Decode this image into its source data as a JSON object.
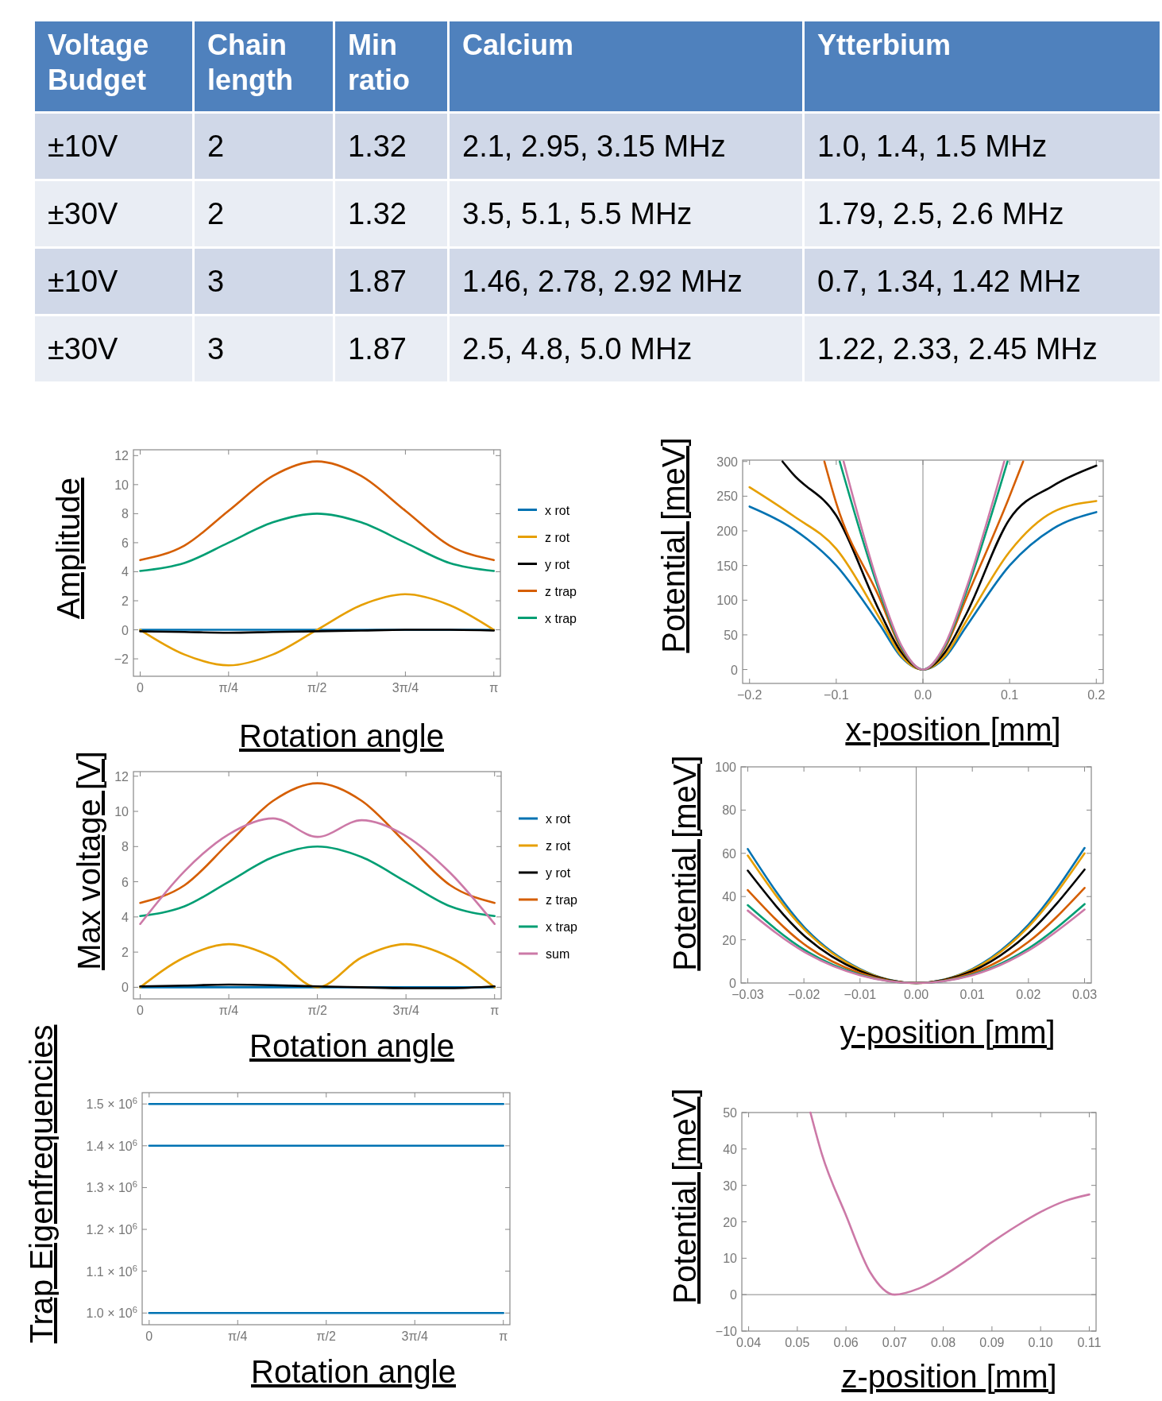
{
  "chart_data": [
    {
      "type": "other",
      "categories": [
        "Voltage Budget",
        "Chain length",
        "Min ratio",
        "Calcium",
        "Ytterbium"
      ],
      "cell_labels": [
        [
          "±10V",
          "2",
          "1.32",
          "2.1, 2.95, 3.15 MHz",
          "1.0, 1.4, 1.5 MHz"
        ],
        [
          "±30V",
          "2",
          "1.32",
          "3.5, 5.1, 5.5 MHz",
          "1.79, 2.5, 2.6 MHz"
        ],
        [
          "±10V",
          "3",
          "1.87",
          "1.46, 2.78, 2.92 MHz",
          "0.7, 1.34, 1.42 MHz"
        ],
        [
          "±30V",
          "3",
          "1.87",
          "2.5, 4.8, 5.0 MHz",
          "1.22, 2.33, 2.45 MHz"
        ]
      ]
    },
    {
      "type": "line",
      "xlabel": "Rotation angle",
      "ylabel": "Amplitude",
      "legend": "right",
      "xlim": [
        -0.06,
        3.2
      ],
      "ylim": [
        -3.2,
        12.4
      ],
      "xticks": [
        0,
        {
          "value": 0.7854,
          "label": "π/4"
        },
        {
          "value": 1.5708,
          "label": "π/2"
        },
        {
          "value": 2.3562,
          "label": "3π/4"
        },
        {
          "value": 3.1416,
          "label": "π"
        }
      ],
      "yticks": [
        {
          "value": -2,
          "label": "−2"
        },
        0,
        2,
        4,
        6,
        8,
        10,
        12
      ],
      "x": [
        0,
        0.3927,
        0.7854,
        1.1781,
        1.5708,
        1.9635,
        2.3562,
        2.7489,
        3.1416
      ],
      "series": [
        {
          "name": "x rot",
          "color": "#0072b2",
          "values": [
            0,
            0,
            0,
            0,
            0,
            0,
            0,
            0,
            0
          ]
        },
        {
          "name": "z rot",
          "color": "#e69f00",
          "values": [
            0,
            -1.7,
            -2.45,
            -1.7,
            0,
            1.7,
            2.45,
            1.7,
            0
          ]
        },
        {
          "name": "y rot",
          "color": "#000000",
          "values": [
            -0.1,
            -0.15,
            -0.2,
            -0.15,
            -0.1,
            -0.05,
            0,
            0,
            -0.05
          ]
        },
        {
          "name": "z trap",
          "color": "#d55e00",
          "values": [
            4.8,
            5.8,
            8.2,
            10.6,
            11.6,
            10.6,
            8.2,
            5.8,
            4.8
          ]
        },
        {
          "name": "x trap",
          "color": "#009e73",
          "values": [
            4.05,
            4.6,
            6.0,
            7.4,
            8.0,
            7.4,
            6.0,
            4.6,
            4.05
          ]
        }
      ]
    },
    {
      "type": "line",
      "xlabel": "x-position [mm]",
      "ylabel": "Potential [meV]",
      "xlim": [
        -0.208,
        0.208
      ],
      "ylim": [
        -20,
        302
      ],
      "xticks": [
        {
          "value": -0.2,
          "label": "−0.2"
        },
        {
          "value": -0.1,
          "label": "−0.1"
        },
        {
          "value": 0,
          "label": "0.0"
        },
        0.1,
        0.2
      ],
      "yticks": [
        0,
        50,
        100,
        150,
        200,
        250,
        300
      ],
      "ref_lines": [
        {
          "axis": "x",
          "value": 0
        }
      ],
      "series": [
        {
          "color": "#0072b2",
          "x": [
            -0.2,
            -0.15,
            -0.1,
            -0.05,
            -0.025,
            0,
            0.025,
            0.05,
            0.1,
            0.15,
            0.2
          ],
          "values": [
            235,
            203,
            150,
            65,
            18,
            0,
            17,
            62,
            150,
            203,
            227
          ]
        },
        {
          "color": "#e69f00",
          "x": [
            -0.2,
            -0.15,
            -0.1,
            -0.05,
            -0.025,
            0,
            0.025,
            0.05,
            0.1,
            0.15,
            0.2
          ],
          "values": [
            263,
            222,
            174,
            74,
            20,
            0,
            19,
            70,
            170,
            227,
            243
          ]
        },
        {
          "color": "#000000",
          "x": [
            -0.162,
            -0.15,
            -0.1,
            -0.05,
            -0.025,
            0,
            0.025,
            0.05,
            0.1,
            0.15,
            0.2
          ],
          "values": [
            300,
            282,
            222,
            84,
            25,
            0,
            24,
            80,
            217,
            265,
            294
          ]
        },
        {
          "color": "#d55e00",
          "x": [
            -0.1137,
            -0.1,
            -0.05,
            -0.025,
            0,
            0.025,
            0.05,
            0.1,
            0.1156
          ],
          "values": [
            300,
            240,
            103,
            30,
            0,
            30,
            103,
            250,
            300
          ]
        },
        {
          "color": "#009e73",
          "x": [
            -0.096,
            -0.05,
            -0.025,
            0,
            0.025,
            0.05,
            0.0976
          ],
          "values": [
            300,
            112,
            33,
            0,
            33,
            112,
            300
          ]
        },
        {
          "color": "#cc79a7",
          "x": [
            -0.0915,
            -0.05,
            -0.025,
            0,
            0.025,
            0.05,
            0.0938
          ],
          "values": [
            300,
            117,
            35,
            0,
            35,
            117,
            300
          ]
        }
      ]
    },
    {
      "type": "line",
      "xlabel": "Rotation angle",
      "ylabel": "Max voltage [V]",
      "legend": "right",
      "xlim": [
        -0.06,
        3.2
      ],
      "ylim": [
        -0.66,
        12.26
      ],
      "xticks": [
        0,
        {
          "value": 0.7854,
          "label": "π/4"
        },
        {
          "value": 1.5708,
          "label": "π/2"
        },
        {
          "value": 2.3562,
          "label": "3π/4"
        },
        {
          "value": 3.1416,
          "label": "π"
        }
      ],
      "yticks": [
        0,
        2,
        4,
        6,
        8,
        10,
        12
      ],
      "x": [
        0,
        0.3927,
        0.7854,
        1.1781,
        1.5708,
        1.9635,
        2.3562,
        2.7489,
        3.1416
      ],
      "series": [
        {
          "name": "x rot",
          "color": "#0072b2",
          "values": [
            0,
            0,
            0,
            0,
            0,
            0,
            0,
            0,
            0
          ]
        },
        {
          "name": "z rot",
          "color": "#e69f00",
          "values": [
            0,
            1.7,
            2.45,
            1.7,
            0,
            1.7,
            2.45,
            1.7,
            0
          ]
        },
        {
          "name": "y rot",
          "color": "#000000",
          "values": [
            0.05,
            0.1,
            0.15,
            0.12,
            0.05,
            0,
            -0.05,
            -0.05,
            0.05
          ]
        },
        {
          "name": "z trap",
          "color": "#d55e00",
          "values": [
            4.8,
            5.8,
            8.2,
            10.6,
            11.6,
            10.6,
            8.2,
            5.8,
            4.8
          ]
        },
        {
          "name": "x trap",
          "color": "#009e73",
          "values": [
            4.05,
            4.6,
            6.0,
            7.4,
            8.0,
            7.4,
            6.0,
            4.6,
            4.05
          ]
        },
        {
          "name": "sum",
          "color": "#cc79a7",
          "values": [
            3.6,
            6.6,
            8.7,
            9.6,
            8.55,
            9.5,
            8.6,
            6.5,
            3.6
          ]
        }
      ]
    },
    {
      "type": "line",
      "xlabel": "y-position [mm]",
      "ylabel": "Potential [meV]",
      "xlim": [
        -0.0312,
        0.0312
      ],
      "ylim": [
        0,
        100
      ],
      "xticks": [
        {
          "value": -0.03,
          "label": "−0.03"
        },
        {
          "value": -0.02,
          "label": "−0.02"
        },
        {
          "value": -0.01,
          "label": "−0.01"
        },
        {
          "value": 0,
          "label": "0.00"
        },
        0.01,
        0.02,
        0.03
      ],
      "yticks": [
        0,
        20,
        40,
        60,
        80,
        100
      ],
      "ref_lines": [
        {
          "axis": "x",
          "value": 0
        }
      ],
      "x": [
        -0.03,
        -0.02,
        -0.01,
        0,
        0.01,
        0.02,
        0.03
      ],
      "series": [
        {
          "color": "#0072b2",
          "values": [
            62,
            26,
            6.5,
            0,
            6.5,
            27,
            62.5
          ]
        },
        {
          "color": "#e69f00",
          "values": [
            59,
            25,
            6.2,
            0,
            6.2,
            26,
            60
          ]
        },
        {
          "color": "#000000",
          "values": [
            52,
            22,
            5.5,
            0,
            5.5,
            23,
            52.5
          ]
        },
        {
          "color": "#d55e00",
          "values": [
            43,
            18,
            4.6,
            0,
            4.6,
            19,
            44
          ]
        },
        {
          "color": "#009e73",
          "values": [
            36,
            15.5,
            3.9,
            0,
            3.9,
            16,
            36.5
          ]
        },
        {
          "color": "#cc79a7",
          "values": [
            33.5,
            14.5,
            3.6,
            0,
            3.6,
            15,
            34
          ]
        }
      ]
    },
    {
      "type": "line",
      "xlabel": "Rotation angle",
      "ylabel": "Trap Eigenfrequencies",
      "xlim": [
        -0.062,
        3.2
      ],
      "ylim": [
        972000,
        1527000
      ],
      "xticks": [
        0,
        {
          "value": 0.7854,
          "label": "π/4"
        },
        {
          "value": 1.5708,
          "label": "π/2"
        },
        {
          "value": 2.3562,
          "label": "3π/4"
        },
        {
          "value": 3.1416,
          "label": "π"
        }
      ],
      "yticks": [
        {
          "value": 1000000,
          "label": "1.0 × 10$^{6}$"
        },
        {
          "value": 1100000,
          "label": "1.1 × 10$^{6}$"
        },
        {
          "value": 1200000,
          "label": "1.2 × 10$^{6}$"
        },
        {
          "value": 1300000,
          "label": "1.3 × 10$^{6}$"
        },
        {
          "value": 1400000,
          "label": "1.4 × 10$^{6}$"
        },
        {
          "value": 1500000,
          "label": "1.5 × 10$^{6}$"
        }
      ],
      "x": [
        0,
        0.7854,
        1.5708,
        2.3562,
        3.1416
      ],
      "series": [
        {
          "color": "#0072b2",
          "values": [
            1500000,
            1500000,
            1500000,
            1500000,
            1500000
          ]
        },
        {
          "color": "#0072b2",
          "values": [
            1400000,
            1400000,
            1400000,
            1400000,
            1400000
          ]
        },
        {
          "color": "#0072b2",
          "values": [
            1000000,
            1000000,
            1000000,
            1000000,
            1000000
          ]
        }
      ]
    },
    {
      "type": "line",
      "xlabel": "z-position [mm]",
      "ylabel": "Potential [meV]",
      "xlim": [
        0.0386,
        0.1114
      ],
      "ylim": [
        -10,
        50
      ],
      "xticks": [
        0.04,
        0.05,
        0.06,
        0.07,
        0.08,
        0.09,
        {
          "value": 0.1,
          "label": "0.10"
        },
        0.11
      ],
      "yticks": [
        {
          "value": -10,
          "label": "−10"
        },
        0,
        10,
        20,
        30,
        40,
        50
      ],
      "ref_lines": [
        {
          "axis": "y",
          "value": 0
        }
      ],
      "x": [
        0.0527,
        0.055,
        0.06,
        0.065,
        0.07,
        0.075,
        0.08,
        0.085,
        0.09,
        0.095,
        0.1,
        0.105,
        0.11
      ],
      "series": [
        {
          "color": "#cc79a7",
          "values": [
            50,
            38.8,
            21.8,
            6.1,
            0,
            1.7,
            5.2,
            9.6,
            14.4,
            18.8,
            22.7,
            25.7,
            27.5
          ]
        }
      ]
    }
  ]
}
